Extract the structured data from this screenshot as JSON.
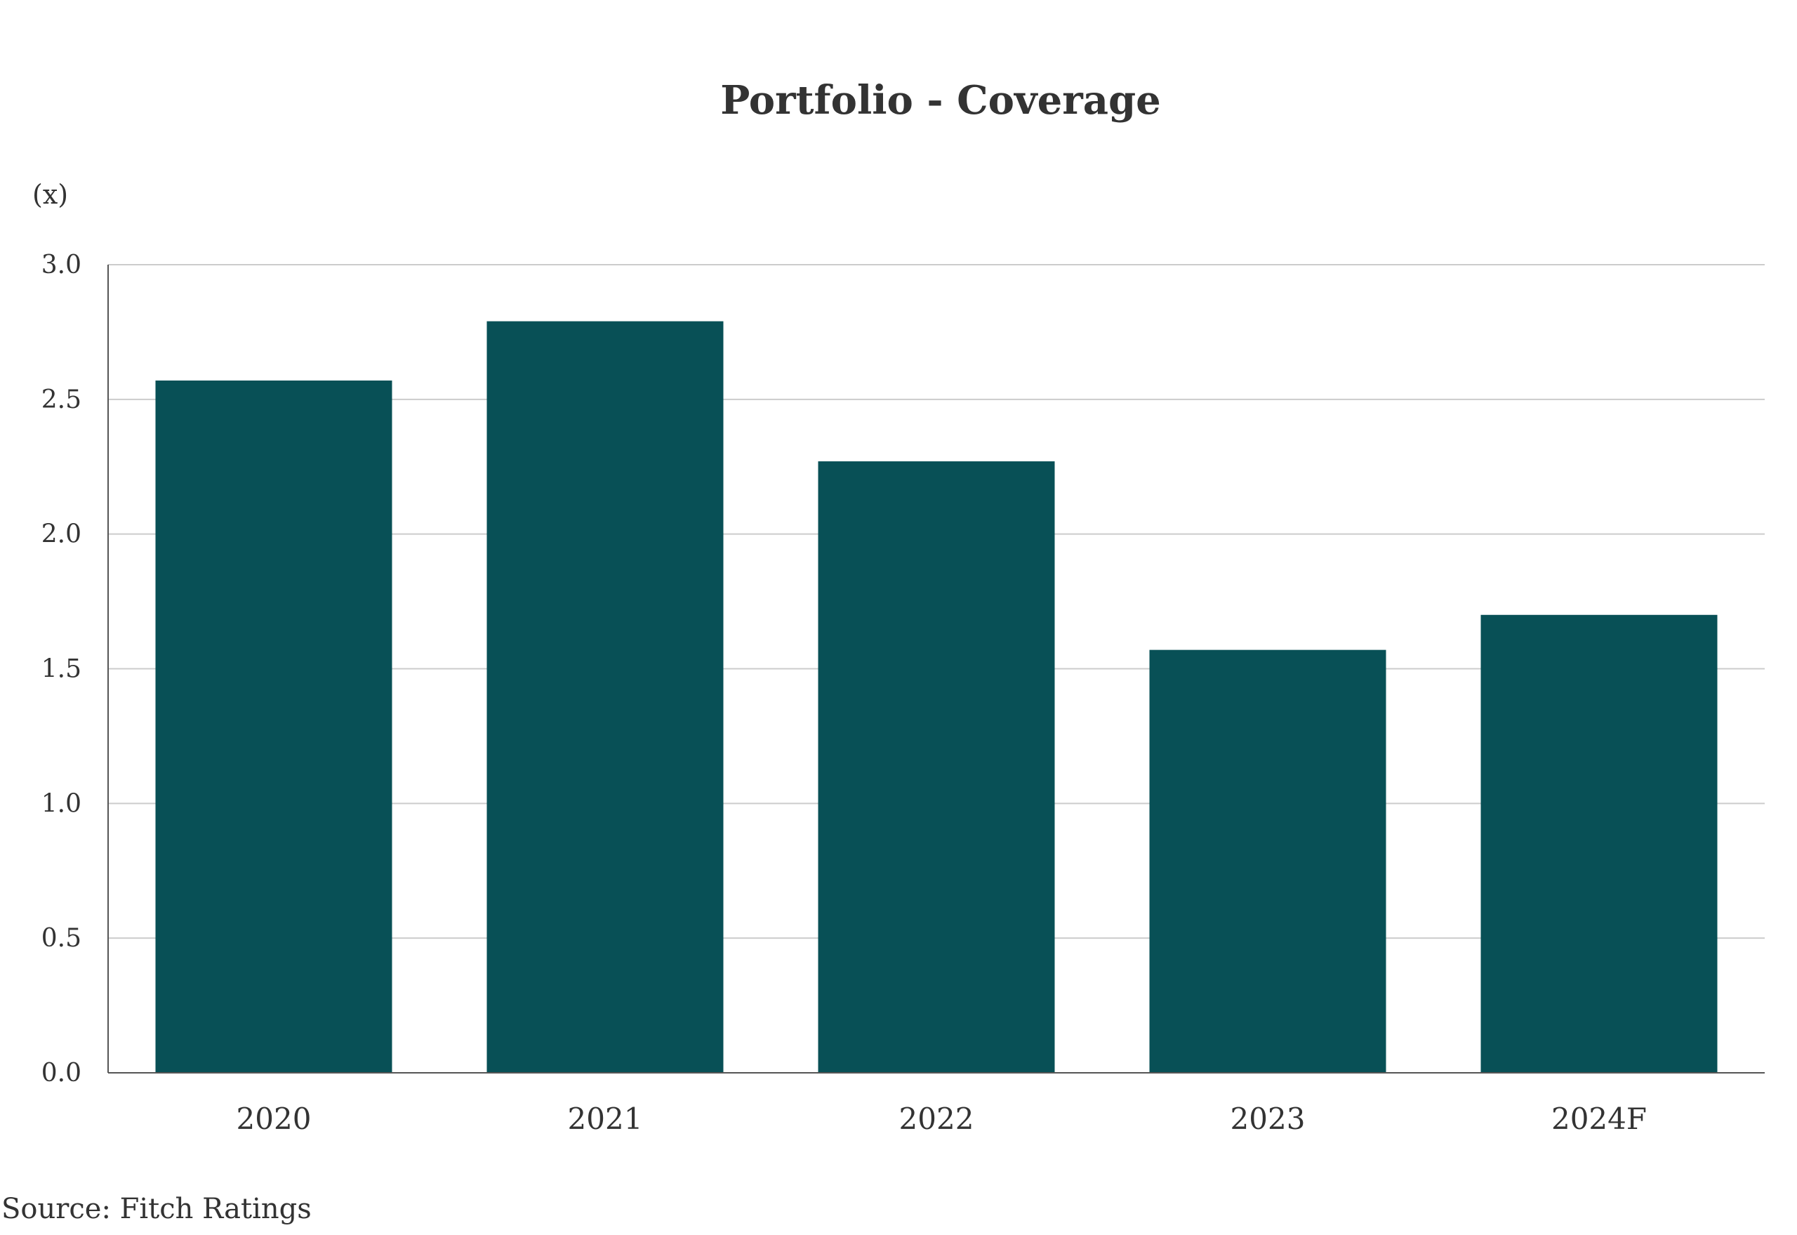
{
  "chart_data": {
    "type": "bar",
    "title": "Portfolio - Coverage",
    "ylabel": "(x)",
    "xlabel": "",
    "categories": [
      "2020",
      "2021",
      "2022",
      "2023",
      "2024F"
    ],
    "values": [
      2.57,
      2.79,
      2.27,
      1.57,
      1.7
    ],
    "ylim": [
      0,
      3.0
    ],
    "yticks": [
      "0.0",
      "0.5",
      "1.0",
      "1.5",
      "2.0",
      "2.5",
      "3.0"
    ],
    "grid": true,
    "bar_color": "#085056",
    "source": "Source: Fitch Ratings"
  }
}
